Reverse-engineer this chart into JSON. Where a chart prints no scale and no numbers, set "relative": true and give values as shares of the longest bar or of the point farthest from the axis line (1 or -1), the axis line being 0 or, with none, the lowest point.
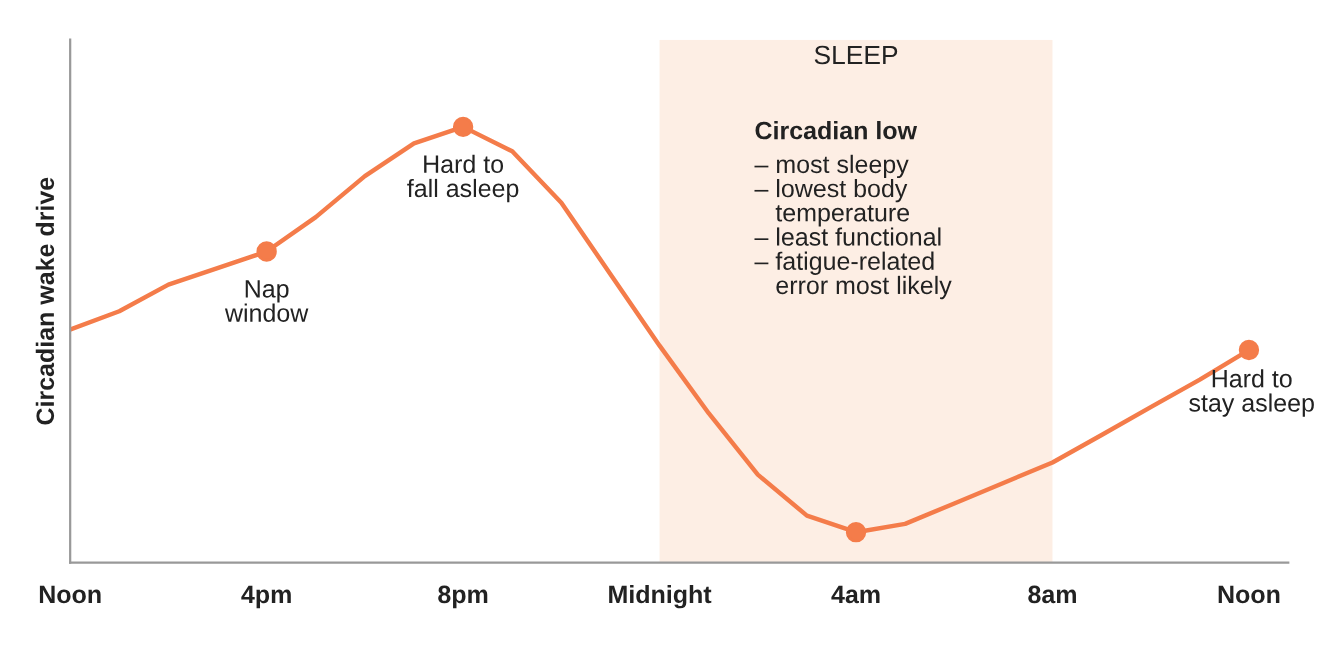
{
  "chart_data": {
    "type": "line",
    "relative": true,
    "ylabel": "Circadian wake drive",
    "categories": [
      "Noon",
      null,
      null,
      null,
      "4pm",
      null,
      null,
      null,
      "8pm",
      null,
      null,
      null,
      "Midnight",
      null,
      null,
      null,
      "4am",
      null,
      null,
      null,
      "8am",
      null,
      null,
      null,
      "Noon"
    ],
    "series": [
      {
        "color": "#f47c4a",
        "values": [
          0.535,
          0.577,
          0.638,
          0.676,
          0.714,
          0.793,
          0.887,
          0.962,
          1.0,
          0.944,
          0.826,
          0.662,
          0.498,
          0.343,
          0.202,
          0.108,
          0.07,
          0.089,
          0.136,
          0.183,
          0.23,
          0.293,
          0.357,
          0.42,
          0.488
        ]
      },
      {
        "type": "scatter",
        "color": "#f47c4a",
        "marker": "circle",
        "values": [
          null,
          null,
          null,
          null,
          0.714,
          null,
          null,
          null,
          1.0,
          null,
          null,
          null,
          null,
          null,
          null,
          null,
          0.07,
          null,
          null,
          null,
          null,
          null,
          null,
          null,
          0.488
        ]
      }
    ],
    "bands": [
      {
        "axis": "x",
        "from": "Midnight",
        "to": "8am",
        "label": "SLEEP",
        "color": "#fdeee4"
      }
    ],
    "annotations": [
      {
        "text": "Nap\nwindow",
        "x": "4pm",
        "y": 0.714
      },
      {
        "text": "Hard to\nfall asleep",
        "x": "8pm",
        "y": 1.0
      },
      "Circadian low",
      "– most sleepy\n– lowest body\n   temperature\n– least functional\n– fatigue-related\n   error most likely",
      "Hard to\nstay asleep"
    ],
    "grid": false,
    "legend": false
  }
}
